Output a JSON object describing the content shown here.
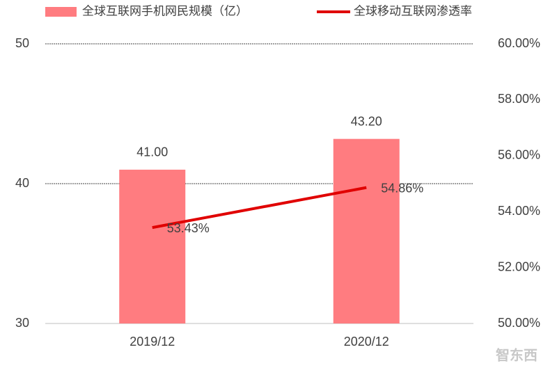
{
  "chart_data": {
    "type": "bar",
    "categories": [
      "2019/12",
      "2020/12"
    ],
    "series": [
      {
        "name": "全球互联网手机网民规模（亿）",
        "type": "bar",
        "color": "#ff7c80",
        "values": [
          41.0,
          43.2
        ],
        "value_labels": [
          "41.00",
          "43.20"
        ]
      },
      {
        "name": "全球移动互联网渗透率",
        "type": "line",
        "axis": "y2",
        "color": "#e00000",
        "values": [
          53.43,
          54.86
        ],
        "value_labels": [
          "53.43%",
          "54.86%"
        ]
      }
    ],
    "ylim": [
      30,
      50
    ],
    "yticks": [
      30,
      40,
      50
    ],
    "y2lim": [
      50,
      60
    ],
    "y2ticks": [
      {
        "value": 50,
        "label": "50.00%"
      },
      {
        "value": 52,
        "label": "52.00%"
      },
      {
        "value": 54,
        "label": "54.00%"
      },
      {
        "value": 56,
        "label": "56.00%"
      },
      {
        "value": 58,
        "label": "58.00%"
      },
      {
        "value": 60,
        "label": "60.00%"
      }
    ],
    "grid": true,
    "legend": "top",
    "watermark": "智东西"
  }
}
